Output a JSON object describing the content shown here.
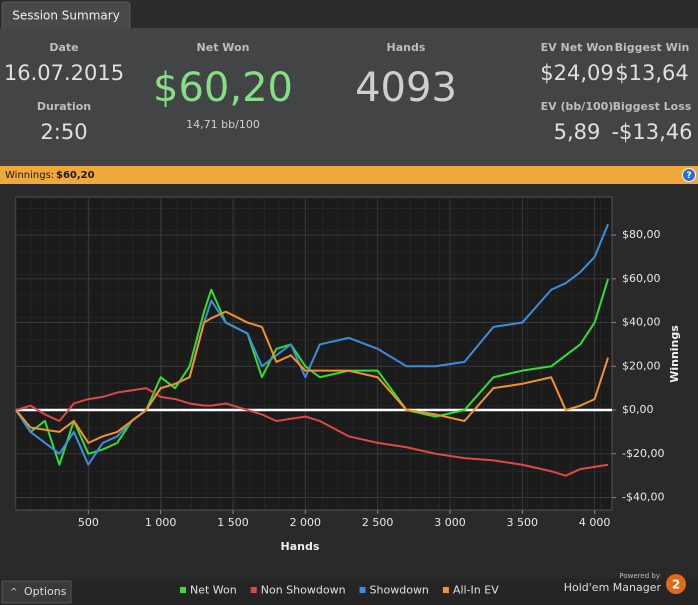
{
  "tab": "Session Summary",
  "stats": {
    "date_label": "Date",
    "date": "16.07.2015",
    "duration_label": "Duration",
    "duration": "2:50",
    "net_won_label": "Net Won",
    "net_won": "$60,20",
    "net_won_bb": "14,71 bb/100",
    "hands_label": "Hands",
    "hands": "4093",
    "ev_net_won_label": "EV Net Won",
    "ev_net_won": "$24,09",
    "biggest_win_label": "Biggest Win",
    "biggest_win": "$13,64",
    "ev_bb_label": "EV (bb/100)",
    "ev_bb": "5,89",
    "biggest_loss_label": "Biggest Loss",
    "biggest_loss": "-$13,46"
  },
  "banner": {
    "label": "Winnings:",
    "value": "$60,20",
    "help": "?"
  },
  "chart_data": {
    "type": "line",
    "xlabel": "Hands",
    "ylabel": "Winnings",
    "x": [
      0,
      100,
      200,
      300,
      400,
      500,
      600,
      700,
      800,
      900,
      1000,
      1100,
      1200,
      1300,
      1350,
      1450,
      1600,
      1700,
      1800,
      1900,
      2000,
      2100,
      2300,
      2500,
      2700,
      2900,
      3100,
      3300,
      3500,
      3700,
      3800,
      3900,
      4000,
      4093
    ],
    "series": [
      {
        "name": "Net Won",
        "color": "#33dd33",
        "values": [
          0,
          -10,
          -5,
          -25,
          -5,
          -20,
          -18,
          -15,
          -5,
          0,
          15,
          10,
          20,
          45,
          55,
          40,
          35,
          15,
          28,
          30,
          20,
          15,
          18,
          18,
          0,
          -3,
          0,
          15,
          18,
          20,
          25,
          30,
          40,
          60
        ]
      },
      {
        "name": "Non Showdown",
        "color": "#e04848",
        "values": [
          0,
          2,
          -2,
          -5,
          3,
          5,
          6,
          8,
          9,
          10,
          6,
          5,
          3,
          2,
          2,
          3,
          0,
          -2,
          -5,
          -4,
          -3,
          -5,
          -12,
          -15,
          -17,
          -20,
          -22,
          -23,
          -25,
          -28,
          -30,
          -27,
          -26,
          -25
        ]
      },
      {
        "name": "Showdown",
        "color": "#3b8ede",
        "values": [
          0,
          -10,
          -15,
          -20,
          -10,
          -25,
          -15,
          -12,
          -5,
          0,
          10,
          12,
          15,
          40,
          50,
          40,
          35,
          20,
          25,
          30,
          15,
          30,
          33,
          28,
          20,
          20,
          22,
          38,
          40,
          55,
          58,
          63,
          70,
          85
        ]
      },
      {
        "name": "All-In EV",
        "color": "#f2922c",
        "values": [
          0,
          -8,
          -9,
          -10,
          -5,
          -15,
          -12,
          -10,
          -5,
          0,
          10,
          12,
          15,
          40,
          42,
          45,
          40,
          38,
          22,
          25,
          18,
          18,
          18,
          15,
          0,
          -2,
          -5,
          10,
          12,
          15,
          0,
          2,
          5,
          24
        ]
      }
    ],
    "xlim": [
      0,
      4120
    ],
    "ylim": [
      -45.7,
      97.4
    ],
    "xticks": [
      500,
      {
        "value": 1000,
        "label": "1 000"
      },
      {
        "value": 1500,
        "label": "1 500"
      },
      {
        "value": 2000,
        "label": "2 000"
      },
      {
        "value": 2500,
        "label": "2 500"
      },
      {
        "value": 3000,
        "label": "3 000"
      },
      {
        "value": 3500,
        "label": "3 500"
      },
      {
        "value": 4000,
        "label": "4 000"
      }
    ],
    "yticks": [
      {
        "value": -40,
        "label": "-$40,00"
      },
      {
        "value": -20,
        "label": "-$20,00"
      },
      {
        "value": 0,
        "label": "$0,00"
      },
      {
        "value": 20,
        "label": "$20,00"
      },
      {
        "value": 40,
        "label": "$40,00"
      },
      {
        "value": 60,
        "label": "$60,00"
      },
      {
        "value": 80,
        "label": "$80,00"
      }
    ],
    "grid": true
  },
  "footer": {
    "options": "Options",
    "powered": "Powered by",
    "brand": "Hold'em Manager",
    "logo": "2"
  }
}
